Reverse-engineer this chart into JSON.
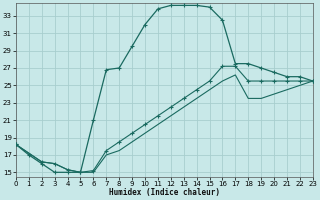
{
  "xlabel": "Humidex (Indice chaleur)",
  "background_color": "#c8e8e8",
  "grid_color": "#a8cece",
  "line_color": "#1a6a60",
  "xlim": [
    0,
    23
  ],
  "ylim": [
    14.5,
    34.5
  ],
  "xticks": [
    0,
    1,
    2,
    3,
    4,
    5,
    6,
    7,
    8,
    9,
    10,
    11,
    12,
    13,
    14,
    15,
    16,
    17,
    18,
    19,
    20,
    21,
    22,
    23
  ],
  "yticks": [
    15,
    17,
    19,
    21,
    23,
    25,
    27,
    29,
    31,
    33
  ],
  "curve1_x": [
    0,
    1,
    2,
    3,
    4,
    5,
    6,
    7,
    8,
    9,
    10,
    11,
    12,
    13,
    14,
    15,
    16,
    17,
    18,
    19,
    20,
    21,
    22,
    23
  ],
  "curve1_y": [
    18.2,
    17.0,
    16.0,
    15.0,
    15.0,
    15.0,
    21.0,
    26.8,
    27.0,
    29.5,
    32.0,
    33.8,
    34.2,
    34.2,
    34.2,
    34.0,
    32.5,
    27.5,
    27.5,
    27.0,
    26.5,
    26.0,
    26.0,
    25.5
  ],
  "curve2_x": [
    0,
    2,
    3,
    4,
    5,
    6,
    7,
    8,
    9,
    10,
    11,
    12,
    13,
    14,
    15,
    16,
    17,
    18,
    19,
    20,
    21,
    22,
    23
  ],
  "curve2_y": [
    18.2,
    16.2,
    16.0,
    15.3,
    15.0,
    15.2,
    17.5,
    18.5,
    19.5,
    20.5,
    21.5,
    22.5,
    23.5,
    24.5,
    25.5,
    27.2,
    27.2,
    25.5,
    25.5,
    25.5,
    25.5,
    25.5,
    25.5
  ],
  "curve3_x": [
    0,
    2,
    3,
    4,
    5,
    6,
    7,
    8,
    9,
    10,
    11,
    12,
    13,
    14,
    15,
    16,
    17,
    18,
    19,
    20,
    21,
    22,
    23
  ],
  "curve3_y": [
    18.2,
    16.2,
    16.0,
    15.3,
    15.0,
    15.0,
    17.0,
    17.5,
    18.5,
    19.5,
    20.5,
    21.5,
    22.5,
    23.5,
    24.5,
    25.5,
    26.2,
    23.5,
    23.5,
    24.0,
    24.5,
    25.0,
    25.5
  ]
}
